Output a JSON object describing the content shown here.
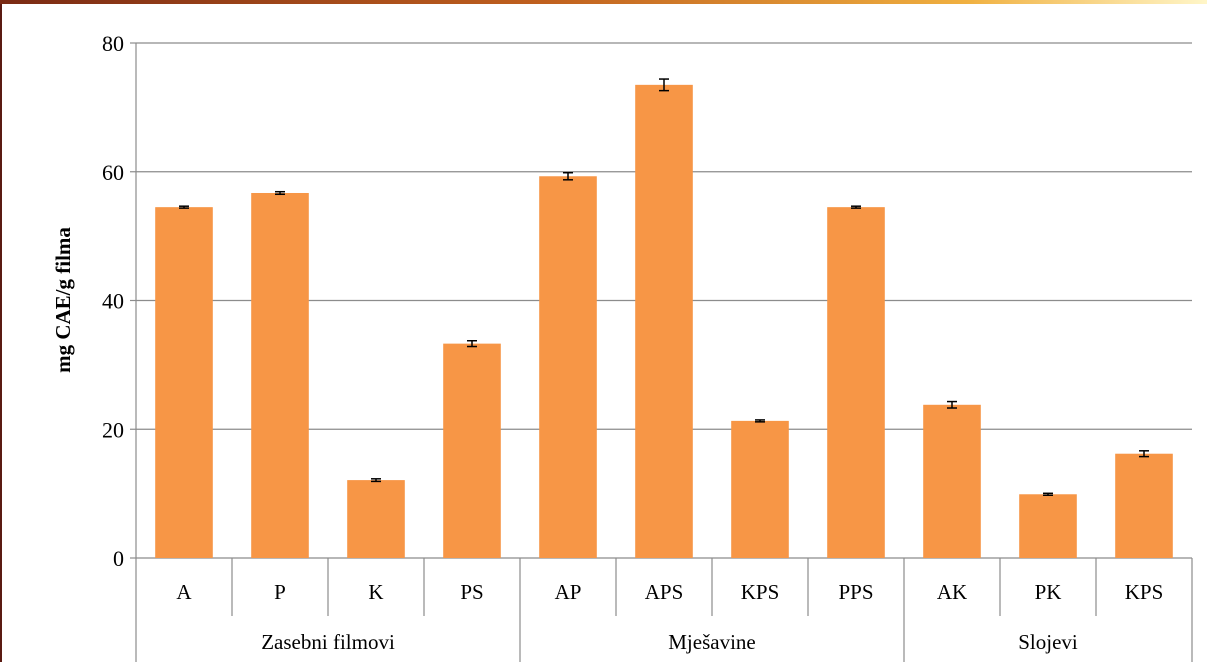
{
  "chart_data": {
    "type": "bar",
    "title": "",
    "xlabel": "",
    "ylabel": "mg CAE/g filma",
    "ylim": [
      0,
      80
    ],
    "yticks": [
      0,
      20,
      40,
      60,
      80
    ],
    "grid": true,
    "legend": "none",
    "bar_color": "#f79646",
    "groups": [
      {
        "name": "Zasebni filmovi",
        "categories": [
          "A",
          "P",
          "K",
          "PS"
        ]
      },
      {
        "name": "Mješavine",
        "categories": [
          "AP",
          "APS",
          "KPS",
          "PPS"
        ]
      },
      {
        "name": "Slojevi",
        "categories": [
          "AK",
          "PK",
          "KPS"
        ]
      }
    ],
    "categories": [
      "A",
      "P",
      "K",
      "PS",
      "AP",
      "APS",
      "KPS",
      "PPS",
      "AK",
      "PK",
      "KPS"
    ],
    "values": [
      54.5,
      56.7,
      12.1,
      33.3,
      59.3,
      73.5,
      21.3,
      54.5,
      23.8,
      9.9,
      16.2
    ],
    "errors": [
      0.15,
      0.2,
      0.2,
      0.45,
      0.55,
      0.9,
      0.15,
      0.15,
      0.5,
      0.15,
      0.45
    ]
  }
}
